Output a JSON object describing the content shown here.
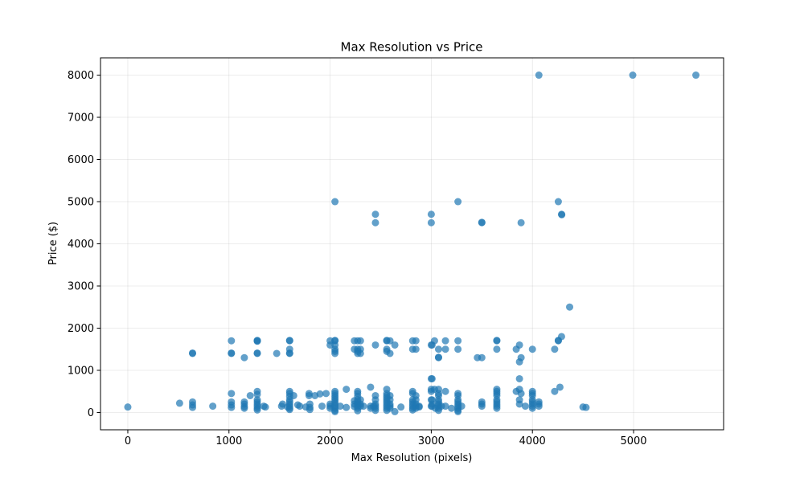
{
  "chart_data": {
    "type": "scatter",
    "title": "Max Resolution vs Price",
    "xlabel": "Max Resolution (pixels)",
    "ylabel": "Price ($)",
    "xlim": [
      -270,
      5890
    ],
    "ylim": [
      -410,
      8410
    ],
    "xticks": [
      0,
      1000,
      2000,
      3000,
      4000,
      5000
    ],
    "yticks": [
      0,
      1000,
      2000,
      3000,
      4000,
      5000,
      6000,
      7000,
      8000
    ],
    "grid": true,
    "marker_color": "#1f77b4",
    "series": [
      {
        "points": [
          [
            0,
            130
          ],
          [
            512,
            220
          ],
          [
            640,
            1400
          ],
          [
            640,
            1410
          ],
          [
            640,
            250
          ],
          [
            640,
            180
          ],
          [
            640,
            120
          ],
          [
            840,
            150
          ],
          [
            1024,
            1700
          ],
          [
            1024,
            1400
          ],
          [
            1024,
            1410
          ],
          [
            1024,
            450
          ],
          [
            1024,
            250
          ],
          [
            1024,
            180
          ],
          [
            1024,
            120
          ],
          [
            1152,
            1300
          ],
          [
            1152,
            250
          ],
          [
            1152,
            200
          ],
          [
            1152,
            140
          ],
          [
            1152,
            100
          ],
          [
            1210,
            400
          ],
          [
            1280,
            1700
          ],
          [
            1280,
            1710
          ],
          [
            1280,
            1690
          ],
          [
            1280,
            1400
          ],
          [
            1280,
            1410
          ],
          [
            1280,
            500
          ],
          [
            1280,
            430
          ],
          [
            1280,
            300
          ],
          [
            1280,
            250
          ],
          [
            1280,
            200
          ],
          [
            1280,
            150
          ],
          [
            1280,
            100
          ],
          [
            1280,
            60
          ],
          [
            1344,
            150
          ],
          [
            1360,
            130
          ],
          [
            1472,
            1400
          ],
          [
            1520,
            150
          ],
          [
            1530,
            200
          ],
          [
            1580,
            130
          ],
          [
            1600,
            1700
          ],
          [
            1600,
            1710
          ],
          [
            1600,
            1500
          ],
          [
            1600,
            1400
          ],
          [
            1600,
            1410
          ],
          [
            1600,
            500
          ],
          [
            1600,
            450
          ],
          [
            1600,
            380
          ],
          [
            1600,
            300
          ],
          [
            1600,
            250
          ],
          [
            1600,
            200
          ],
          [
            1600,
            150
          ],
          [
            1600,
            100
          ],
          [
            1600,
            70
          ],
          [
            1640,
            400
          ],
          [
            1680,
            180
          ],
          [
            1700,
            150
          ],
          [
            1760,
            130
          ],
          [
            1792,
            450
          ],
          [
            1792,
            400
          ],
          [
            1800,
            200
          ],
          [
            1800,
            120
          ],
          [
            1800,
            70
          ],
          [
            1850,
            400
          ],
          [
            1900,
            440
          ],
          [
            1920,
            150
          ],
          [
            1960,
            450
          ],
          [
            2000,
            1700
          ],
          [
            2000,
            1600
          ],
          [
            2000,
            200
          ],
          [
            2000,
            150
          ],
          [
            2000,
            100
          ],
          [
            2048,
            5000
          ],
          [
            2048,
            1710
          ],
          [
            2048,
            1700
          ],
          [
            2048,
            1600
          ],
          [
            2048,
            1500
          ],
          [
            2048,
            1450
          ],
          [
            2048,
            1400
          ],
          [
            2048,
            500
          ],
          [
            2048,
            450
          ],
          [
            2048,
            400
          ],
          [
            2048,
            350
          ],
          [
            2048,
            300
          ],
          [
            2048,
            250
          ],
          [
            2048,
            200
          ],
          [
            2048,
            150
          ],
          [
            2048,
            100
          ],
          [
            2048,
            50
          ],
          [
            2048,
            20
          ],
          [
            2100,
            150
          ],
          [
            2160,
            550
          ],
          [
            2160,
            120
          ],
          [
            2240,
            1700
          ],
          [
            2240,
            1500
          ],
          [
            2240,
            280
          ],
          [
            2240,
            200
          ],
          [
            2240,
            140
          ],
          [
            2272,
            1700
          ],
          [
            2272,
            1500
          ],
          [
            2272,
            1450
          ],
          [
            2272,
            1400
          ],
          [
            2272,
            500
          ],
          [
            2272,
            450
          ],
          [
            2272,
            380
          ],
          [
            2272,
            300
          ],
          [
            2272,
            250
          ],
          [
            2272,
            200
          ],
          [
            2272,
            150
          ],
          [
            2272,
            100
          ],
          [
            2272,
            40
          ],
          [
            2300,
            1700
          ],
          [
            2300,
            1500
          ],
          [
            2300,
            1400
          ],
          [
            2300,
            300
          ],
          [
            2300,
            200
          ],
          [
            2300,
            150
          ],
          [
            2330,
            150
          ],
          [
            2400,
            600
          ],
          [
            2400,
            150
          ],
          [
            2400,
            100
          ],
          [
            2430,
            150
          ],
          [
            2448,
            4700
          ],
          [
            2448,
            4500
          ],
          [
            2448,
            1600
          ],
          [
            2448,
            400
          ],
          [
            2448,
            300
          ],
          [
            2448,
            200
          ],
          [
            2448,
            150
          ],
          [
            2448,
            100
          ],
          [
            2448,
            50
          ],
          [
            2560,
            1700
          ],
          [
            2560,
            1710
          ],
          [
            2560,
            1500
          ],
          [
            2560,
            1450
          ],
          [
            2560,
            550
          ],
          [
            2560,
            450
          ],
          [
            2560,
            400
          ],
          [
            2560,
            350
          ],
          [
            2560,
            300
          ],
          [
            2560,
            250
          ],
          [
            2560,
            200
          ],
          [
            2560,
            150
          ],
          [
            2560,
            100
          ],
          [
            2560,
            50
          ],
          [
            2592,
            1700
          ],
          [
            2592,
            1400
          ],
          [
            2592,
            400
          ],
          [
            2592,
            300
          ],
          [
            2592,
            200
          ],
          [
            2592,
            150
          ],
          [
            2592,
            100
          ],
          [
            2640,
            1600
          ],
          [
            2640,
            20
          ],
          [
            2700,
            130
          ],
          [
            2816,
            1700
          ],
          [
            2816,
            1500
          ],
          [
            2816,
            500
          ],
          [
            2816,
            450
          ],
          [
            2816,
            300
          ],
          [
            2816,
            250
          ],
          [
            2816,
            200
          ],
          [
            2816,
            150
          ],
          [
            2816,
            100
          ],
          [
            2816,
            60
          ],
          [
            2848,
            1700
          ],
          [
            2848,
            1500
          ],
          [
            2848,
            400
          ],
          [
            2848,
            300
          ],
          [
            2848,
            200
          ],
          [
            2848,
            150
          ],
          [
            2848,
            100
          ],
          [
            2880,
            150
          ],
          [
            2880,
            130
          ],
          [
            3000,
            4700
          ],
          [
            3000,
            4500
          ],
          [
            3000,
            1600
          ],
          [
            3000,
            800
          ],
          [
            3000,
            550
          ],
          [
            3000,
            500
          ],
          [
            3000,
            300
          ],
          [
            3000,
            150
          ],
          [
            3008,
            1600
          ],
          [
            3008,
            800
          ],
          [
            3008,
            300
          ],
          [
            3008,
            200
          ],
          [
            3008,
            150
          ],
          [
            3032,
            1700
          ],
          [
            3032,
            550
          ],
          [
            3040,
            100
          ],
          [
            3072,
            1500
          ],
          [
            3072,
            1300
          ],
          [
            3072,
            1310
          ],
          [
            3072,
            550
          ],
          [
            3072,
            450
          ],
          [
            3072,
            400
          ],
          [
            3072,
            300
          ],
          [
            3072,
            250
          ],
          [
            3072,
            200
          ],
          [
            3072,
            150
          ],
          [
            3072,
            100
          ],
          [
            3072,
            50
          ],
          [
            3100,
            150
          ],
          [
            3140,
            1700
          ],
          [
            3140,
            1500
          ],
          [
            3140,
            500
          ],
          [
            3140,
            150
          ],
          [
            3200,
            100
          ],
          [
            3264,
            5000
          ],
          [
            3264,
            1700
          ],
          [
            3264,
            1500
          ],
          [
            3264,
            450
          ],
          [
            3264,
            400
          ],
          [
            3264,
            300
          ],
          [
            3264,
            250
          ],
          [
            3264,
            200
          ],
          [
            3264,
            150
          ],
          [
            3264,
            100
          ],
          [
            3264,
            50
          ],
          [
            3264,
            20
          ],
          [
            3300,
            150
          ],
          [
            3456,
            1300
          ],
          [
            3500,
            4500
          ],
          [
            3500,
            4510
          ],
          [
            3500,
            1300
          ],
          [
            3500,
            250
          ],
          [
            3500,
            200
          ],
          [
            3500,
            150
          ],
          [
            3648,
            1700
          ],
          [
            3648,
            1710
          ],
          [
            3648,
            1500
          ],
          [
            3648,
            550
          ],
          [
            3648,
            500
          ],
          [
            3648,
            450
          ],
          [
            3648,
            400
          ],
          [
            3648,
            300
          ],
          [
            3648,
            250
          ],
          [
            3648,
            200
          ],
          [
            3648,
            150
          ],
          [
            3648,
            100
          ],
          [
            3840,
            1500
          ],
          [
            3840,
            500
          ],
          [
            3872,
            1600
          ],
          [
            3872,
            1200
          ],
          [
            3872,
            800
          ],
          [
            3872,
            550
          ],
          [
            3872,
            300
          ],
          [
            3872,
            200
          ],
          [
            3888,
            4500
          ],
          [
            3888,
            1300
          ],
          [
            3888,
            450
          ],
          [
            3930,
            150
          ],
          [
            4000,
            1500
          ],
          [
            4000,
            500
          ],
          [
            4000,
            450
          ],
          [
            4000,
            400
          ],
          [
            4000,
            300
          ],
          [
            4000,
            250
          ],
          [
            4000,
            200
          ],
          [
            4000,
            150
          ],
          [
            4000,
            100
          ],
          [
            4064,
            8000
          ],
          [
            4064,
            250
          ],
          [
            4064,
            200
          ],
          [
            4064,
            150
          ],
          [
            4220,
            1500
          ],
          [
            4220,
            500
          ],
          [
            4256,
            5000
          ],
          [
            4256,
            1700
          ],
          [
            4256,
            1710
          ],
          [
            4272,
            600
          ],
          [
            4288,
            4700
          ],
          [
            4290,
            4690
          ],
          [
            4288,
            1800
          ],
          [
            4368,
            2500
          ],
          [
            4500,
            130
          ],
          [
            4530,
            120
          ],
          [
            4992,
            8000
          ],
          [
            5616,
            8000
          ]
        ]
      }
    ]
  }
}
